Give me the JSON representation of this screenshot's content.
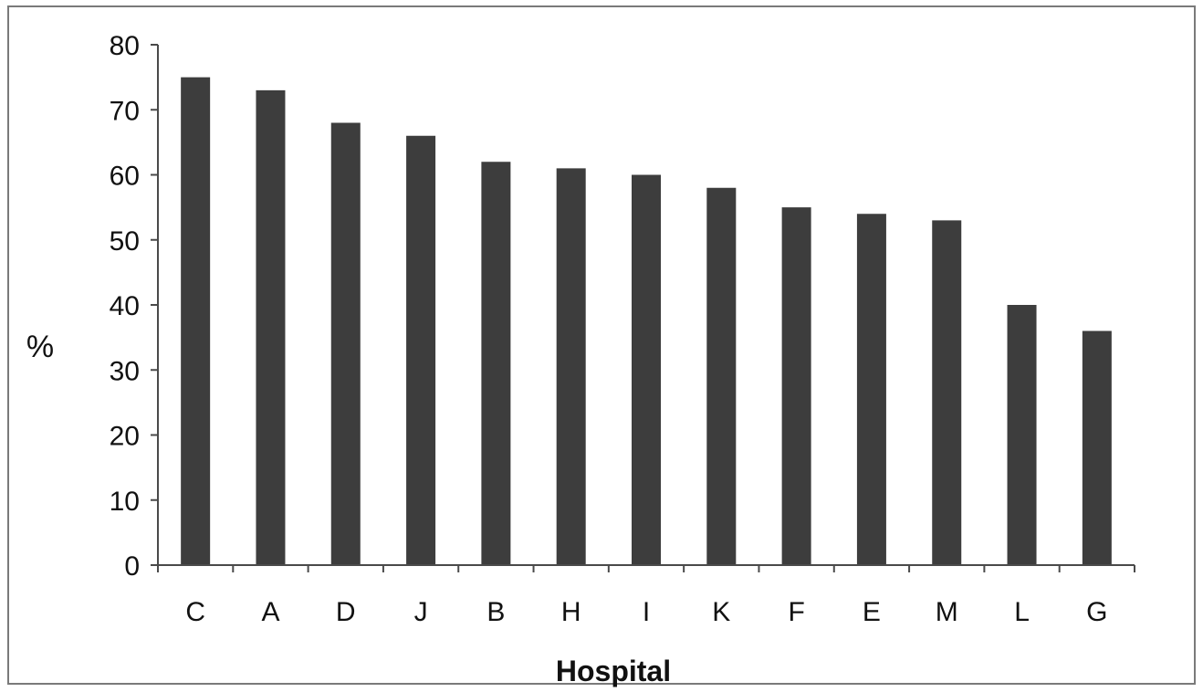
{
  "chart_data": {
    "type": "bar",
    "title": "",
    "xlabel": "Hospital",
    "ylabel": "%",
    "ylim": [
      0,
      80
    ],
    "yticks": [
      0,
      10,
      20,
      30,
      40,
      50,
      60,
      70,
      80
    ],
    "grid": false,
    "legend": "none",
    "categories": [
      "C",
      "A",
      "D",
      "J",
      "B",
      "H",
      "I",
      "K",
      "F",
      "E",
      "M",
      "L",
      "G"
    ],
    "values": [
      75,
      73,
      68,
      66,
      62,
      61,
      60,
      58,
      55,
      54,
      53,
      40,
      36
    ],
    "bar_color": "#3d3d3d"
  }
}
